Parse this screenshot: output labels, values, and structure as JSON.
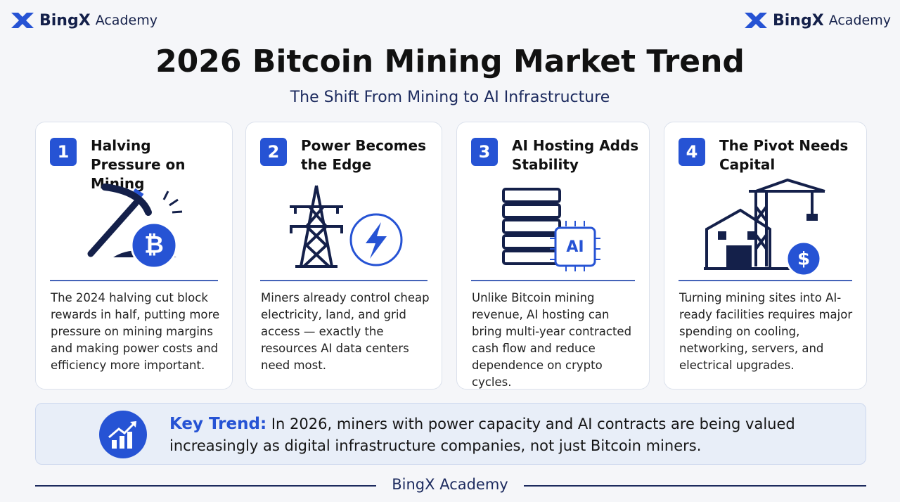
{
  "logo": {
    "name": "BingX",
    "suffix": "Academy"
  },
  "title": "2026 Bitcoin Mining Market Trend",
  "subtitle": "The Shift From Mining to AI Infrastructure",
  "cards": [
    {
      "number": 1,
      "title": "Halving Pressure on Mining",
      "icon_text": "₿",
      "text": "The 2024 halving cut block rewards in half, putting more pressure on mining margins and making power costs and efficiency more important."
    },
    {
      "number": 2,
      "title": "Power Becomes the Edge",
      "text": "Miners already control cheap electricity, land, and grid access — exactly the resources AI data centers need most."
    },
    {
      "number": 3,
      "title": "AI Hosting Adds Stability",
      "icon_text": "AI",
      "text": "Unlike Bitcoin mining revenue, AI hosting can bring multi-year contracted cash flow and reduce dependence on crypto cycles."
    },
    {
      "number": 4,
      "title": "The Pivot Needs Capital",
      "icon_text": "$",
      "text": "Turning mining sites into AI-ready facilities requires major spending on cooling, networking, servers, and electrical upgrades."
    }
  ],
  "key_trend": {
    "label": "Key Trend:",
    "text": "In 2026, miners with power capacity and AI contracts are being valued increasingly as digital infrastructure companies, not just Bitcoin miners."
  },
  "footer": "BingX Academy"
}
